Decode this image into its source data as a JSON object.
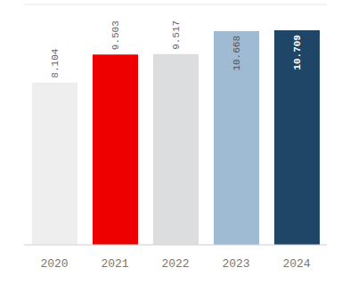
{
  "chart_data": {
    "type": "bar",
    "categories": [
      "2020",
      "2021",
      "2022",
      "2023",
      "2024"
    ],
    "values": [
      8.104,
      9.503,
      9.517,
      10.668,
      10.709
    ],
    "colors": [
      "#eeeeee",
      "#ee0000",
      "#dcdddf",
      "#9fbad3",
      "#1f4567"
    ],
    "ylim": [
      0,
      12
    ],
    "yticks": [
      0,
      2,
      4,
      6,
      8,
      10,
      12
    ],
    "grid": true,
    "data_labels": true,
    "tick_labels": "x"
  }
}
